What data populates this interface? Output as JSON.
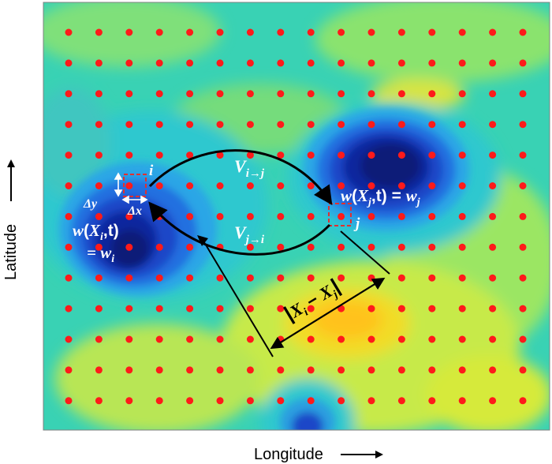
{
  "axes": {
    "x_label": "Longitude",
    "y_label": "Latitude"
  },
  "grid": {
    "columns": 16,
    "rows": 13,
    "dot_color": "#ff1a1a"
  },
  "colors": {
    "field_base": "#39d2b4",
    "low_dark": "#0a1e8c",
    "high": "#ffd21e",
    "arrow": "#000000",
    "highlight_box": "#e03030"
  },
  "labels": {
    "node_i": "i",
    "node_j": "j",
    "dy": "Δy",
    "dx": "Δx",
    "v_ij_base": "V",
    "v_ij_sub": "i→j",
    "v_ji_base": "V",
    "v_ji_sub": "j→i",
    "wi_w": "w",
    "wi_open": "(",
    "wi_X": "X",
    "wi_sub": "i",
    "wi_rest": ",t)",
    "wi_eq": "= w",
    "wi_eq_sub": "i",
    "wj_w": "w",
    "wj_open": "(",
    "wj_X": "X",
    "wj_sub": "j",
    "wj_rest": ",t) = ",
    "wj_w2": "w",
    "wj_sub2": "j",
    "dist_X1": "X",
    "dist_sub1": "i",
    "dist_minus": " − ",
    "dist_X2": "X",
    "dist_sub2": "j"
  }
}
